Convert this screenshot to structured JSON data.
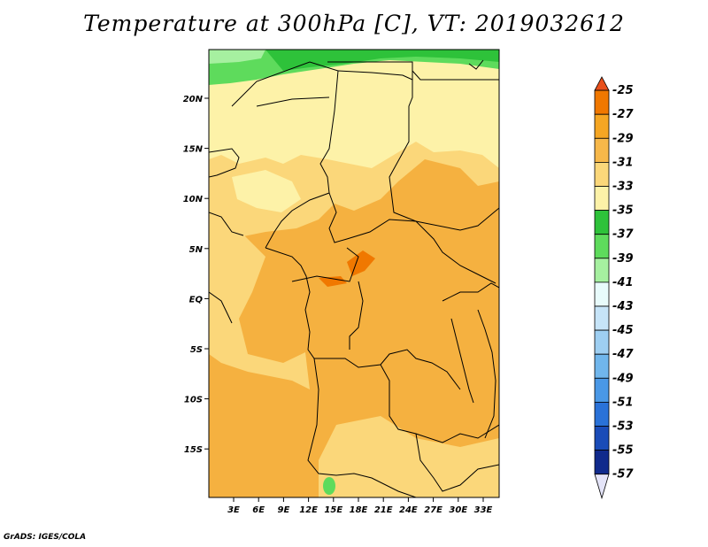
{
  "title": "Temperature at 300hPa [C], VT: 2019032612",
  "credit": "GrADS: IGES/COLA",
  "map": {
    "x_ticks": [
      "3E",
      "6E",
      "9E",
      "12E",
      "15E",
      "18E",
      "21E",
      "24E",
      "27E",
      "30E",
      "33E"
    ],
    "y_ticks": [
      "20N",
      "15N",
      "10N",
      "5N",
      "EQ",
      "5S",
      "10S",
      "15S"
    ]
  },
  "colorbar": {
    "labels": [
      "-25",
      "-27",
      "-29",
      "-31",
      "-33",
      "-35",
      "-37",
      "-39",
      "-41",
      "-43",
      "-45",
      "-47",
      "-49",
      "-51",
      "-53",
      "-55",
      "-57"
    ],
    "colors": [
      "#e8501c",
      "#f07800",
      "#f5a623",
      "#f7b84a",
      "#fbd77a",
      "#fdf2a8",
      "#2ec23a",
      "#5edb5c",
      "#a6f0a0",
      "#e8fbfb",
      "#c6e4f8",
      "#9ecff2",
      "#70b6ec",
      "#4a98e6",
      "#2a72d8",
      "#1a4cb8",
      "#102a8c",
      "#060a5a",
      "#e4e4f8"
    ]
  }
}
